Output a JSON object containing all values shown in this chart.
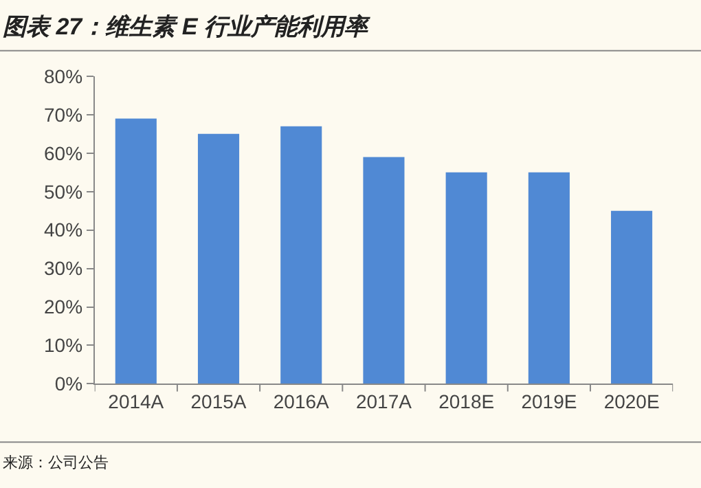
{
  "chart_data": {
    "type": "bar",
    "title": "图表 27：维生素 E 行业产能利用率",
    "categories": [
      "2014A",
      "2015A",
      "2016A",
      "2017A",
      "2018E",
      "2019E",
      "2020E"
    ],
    "values": [
      69,
      65,
      67,
      59,
      55,
      55,
      45
    ],
    "color": "#5089d4",
    "ylim": [
      0,
      80
    ],
    "yticks": [
      {
        "value": 0,
        "label": "0%"
      },
      {
        "value": 10,
        "label": "10%"
      },
      {
        "value": 20,
        "label": "20%"
      },
      {
        "value": 30,
        "label": "30%"
      },
      {
        "value": 40,
        "label": "40%"
      },
      {
        "value": 50,
        "label": "50%"
      },
      {
        "value": 60,
        "label": "60%"
      },
      {
        "value": 70,
        "label": "70%"
      },
      {
        "value": 80,
        "label": "80%"
      }
    ],
    "grid": false,
    "legend": false,
    "annotations": [
      "来源：公司公告"
    ]
  }
}
